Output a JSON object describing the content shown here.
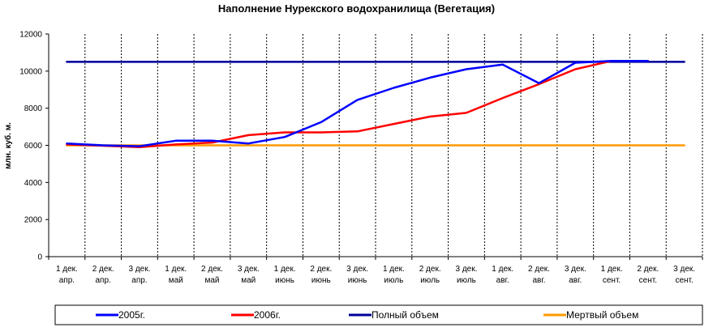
{
  "chart_data": {
    "type": "line",
    "title": "Наполнение Нурекского водохранилища (Вегетация)",
    "ylabel": "млн. куб. м.",
    "xlabel": "",
    "ylim": [
      0,
      12000
    ],
    "yticks": [
      "0",
      "2000",
      "4000",
      "6000",
      "8000",
      "10000",
      "12000"
    ],
    "grid_x": true,
    "grid_y": false,
    "legend_position": "bottom",
    "categories": [
      [
        "1 дек.",
        "апр."
      ],
      [
        "2 дек.",
        "апр."
      ],
      [
        "3 дек.",
        "апр."
      ],
      [
        "1 дек.",
        "май"
      ],
      [
        "2 дек.",
        "май"
      ],
      [
        "3 дек.",
        "май"
      ],
      [
        "1 дек.",
        "июнь"
      ],
      [
        "2 дек.",
        "июнь"
      ],
      [
        "3 дек.",
        "июнь"
      ],
      [
        "1 дек.",
        "июль"
      ],
      [
        "2 дек.",
        "июль"
      ],
      [
        "3 дек.",
        "июль"
      ],
      [
        "1 дек.",
        "авг."
      ],
      [
        "2 дек.",
        "авг."
      ],
      [
        "3 дек.",
        "авг."
      ],
      [
        "1 дек.",
        "сент."
      ],
      [
        "2 дек.",
        "сент."
      ],
      [
        "3 дек.",
        "сент."
      ]
    ],
    "series": [
      {
        "name": "2005г.",
        "color": "#0000ff",
        "values": [
          6100,
          6000,
          5950,
          6250,
          6250,
          6100,
          6450,
          7250,
          8450,
          9100,
          9650,
          10100,
          10350,
          9350,
          10450,
          10550,
          10550,
          null
        ]
      },
      {
        "name": "2006г.",
        "color": "#ff0000",
        "values": [
          6050,
          5980,
          5900,
          6050,
          6150,
          6550,
          6700,
          6700,
          6750,
          7150,
          7550,
          7750,
          8550,
          9300,
          10100,
          10550,
          10550,
          null
        ]
      },
      {
        "name": "Полный объем",
        "color": "#000099",
        "values": [
          10500,
          10500,
          10500,
          10500,
          10500,
          10500,
          10500,
          10500,
          10500,
          10500,
          10500,
          10500,
          10500,
          10500,
          10500,
          10500,
          10500,
          10500
        ]
      },
      {
        "name": "Мертвый объем",
        "color": "#ff9900",
        "values": [
          6000,
          6000,
          6000,
          6000,
          6000,
          6000,
          6000,
          6000,
          6000,
          6000,
          6000,
          6000,
          6000,
          6000,
          6000,
          6000,
          6000,
          6000
        ]
      }
    ]
  }
}
